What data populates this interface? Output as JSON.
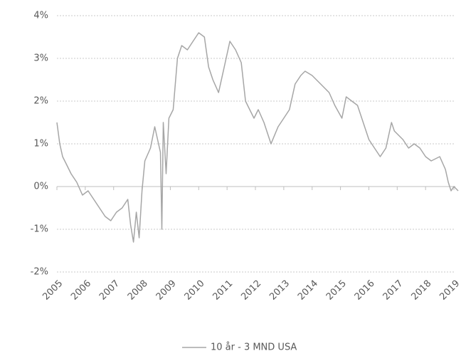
{
  "chart_data": {
    "type": "line",
    "x": [
      2005.0,
      2005.1,
      2005.2,
      2005.35,
      2005.5,
      2005.7,
      2005.9,
      2006.1,
      2006.3,
      2006.5,
      2006.7,
      2006.9,
      2007.1,
      2007.3,
      2007.5,
      2007.6,
      2007.7,
      2007.8,
      2007.9,
      2008.0,
      2008.1,
      2008.3,
      2008.45,
      2008.55,
      2008.65,
      2008.7,
      2008.75,
      2008.85,
      2008.95,
      2009.1,
      2009.25,
      2009.4,
      2009.6,
      2009.8,
      2010.0,
      2010.2,
      2010.35,
      2010.5,
      2010.7,
      2010.9,
      2011.1,
      2011.3,
      2011.5,
      2011.65,
      2011.8,
      2011.95,
      2012.1,
      2012.3,
      2012.55,
      2012.8,
      2013.0,
      2013.2,
      2013.4,
      2013.6,
      2013.75,
      2014.0,
      2014.3,
      2014.6,
      2014.8,
      2015.05,
      2015.2,
      2015.4,
      2015.6,
      2015.8,
      2016.0,
      2016.2,
      2016.4,
      2016.6,
      2016.8,
      2016.9,
      2017.2,
      2017.4,
      2017.6,
      2017.8,
      2018.0,
      2018.2,
      2018.5,
      2018.7,
      2018.8,
      2018.9,
      2019.0,
      2019.15
    ],
    "series": [
      {
        "name": "10 år - 3 MND USA",
        "color": "#a6a6a6",
        "values": [
          1.5,
          1.0,
          0.7,
          0.5,
          0.3,
          0.1,
          -0.2,
          -0.1,
          -0.3,
          -0.5,
          -0.7,
          -0.8,
          -0.6,
          -0.5,
          -0.3,
          -0.9,
          -1.3,
          -0.6,
          -1.2,
          -0.1,
          0.6,
          0.9,
          1.4,
          1.1,
          0.8,
          -1.0,
          1.5,
          0.3,
          1.6,
          1.8,
          3.0,
          3.3,
          3.2,
          3.4,
          3.6,
          3.5,
          2.8,
          2.5,
          2.2,
          2.8,
          3.4,
          3.2,
          2.9,
          2.0,
          1.8,
          1.6,
          1.8,
          1.5,
          1.0,
          1.4,
          1.6,
          1.8,
          2.4,
          2.6,
          2.7,
          2.6,
          2.4,
          2.2,
          1.9,
          1.6,
          2.1,
          2.0,
          1.9,
          1.5,
          1.1,
          0.9,
          0.7,
          0.9,
          1.5,
          1.3,
          1.1,
          0.9,
          1.0,
          0.9,
          0.7,
          0.6,
          0.7,
          0.4,
          0.1,
          -0.1,
          0.0,
          -0.1
        ]
      }
    ],
    "xlim": [
      2005,
      2019.2
    ],
    "xticks": [
      2005,
      2006,
      2007,
      2008,
      2009,
      2010,
      2011,
      2012,
      2013,
      2014,
      2015,
      2016,
      2017,
      2018,
      2019
    ],
    "ylim": [
      -2,
      4
    ],
    "yticks": [
      {
        "value": -2,
        "label": "-2%"
      },
      {
        "value": -1,
        "label": "-1%"
      },
      {
        "value": 0,
        "label": "0%"
      },
      {
        "value": 1,
        "label": "1%"
      },
      {
        "value": 2,
        "label": "2%"
      },
      {
        "value": 3,
        "label": "3%"
      },
      {
        "value": 4,
        "label": "4%"
      }
    ],
    "grid": true,
    "legend": "bottom"
  }
}
